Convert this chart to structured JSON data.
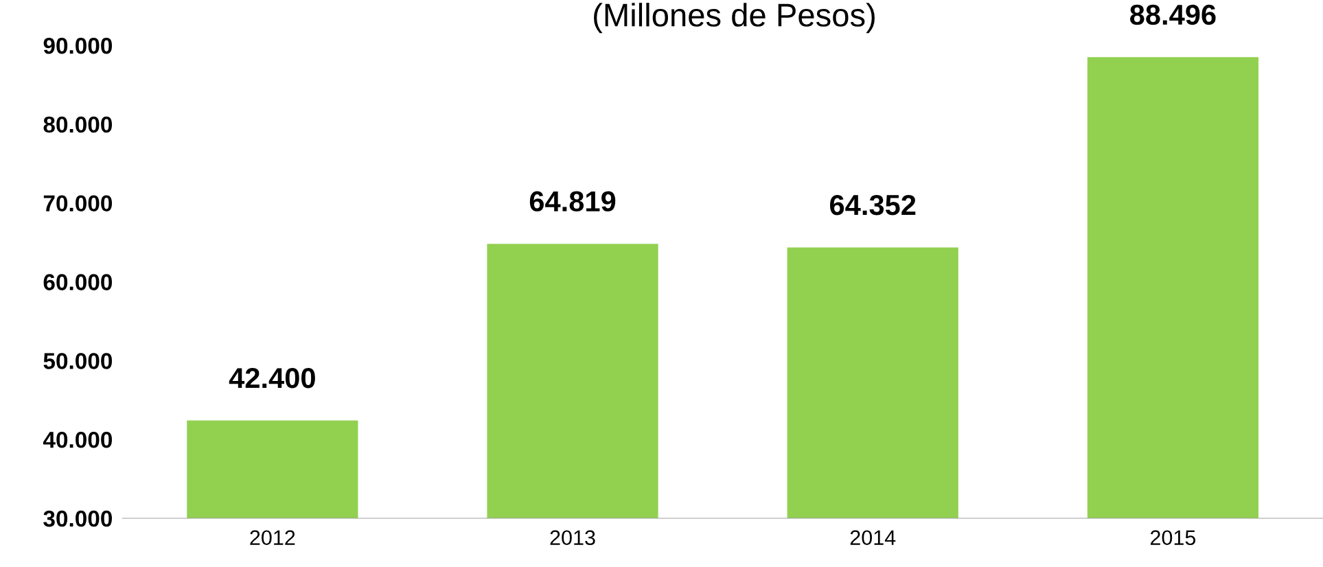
{
  "chart_data": {
    "type": "bar",
    "title": "(Millones de Pesos)",
    "categories": [
      "2012",
      "2013",
      "2014",
      "2015"
    ],
    "values": [
      42400,
      64819,
      64352,
      88496
    ],
    "value_labels": [
      "42.400",
      "64.819",
      "64.352",
      "88.496"
    ],
    "color": "#92d050",
    "ylim": [
      30000,
      90000
    ],
    "yticks": [
      {
        "value": 30000,
        "label": "30.000"
      },
      {
        "value": 40000,
        "label": "40.000"
      },
      {
        "value": 50000,
        "label": "50.000"
      },
      {
        "value": 60000,
        "label": "60.000"
      },
      {
        "value": 70000,
        "label": "70.000"
      },
      {
        "value": 80000,
        "label": "80.000"
      },
      {
        "value": 90000,
        "label": "90.000"
      }
    ],
    "grid": false,
    "legend": false
  }
}
